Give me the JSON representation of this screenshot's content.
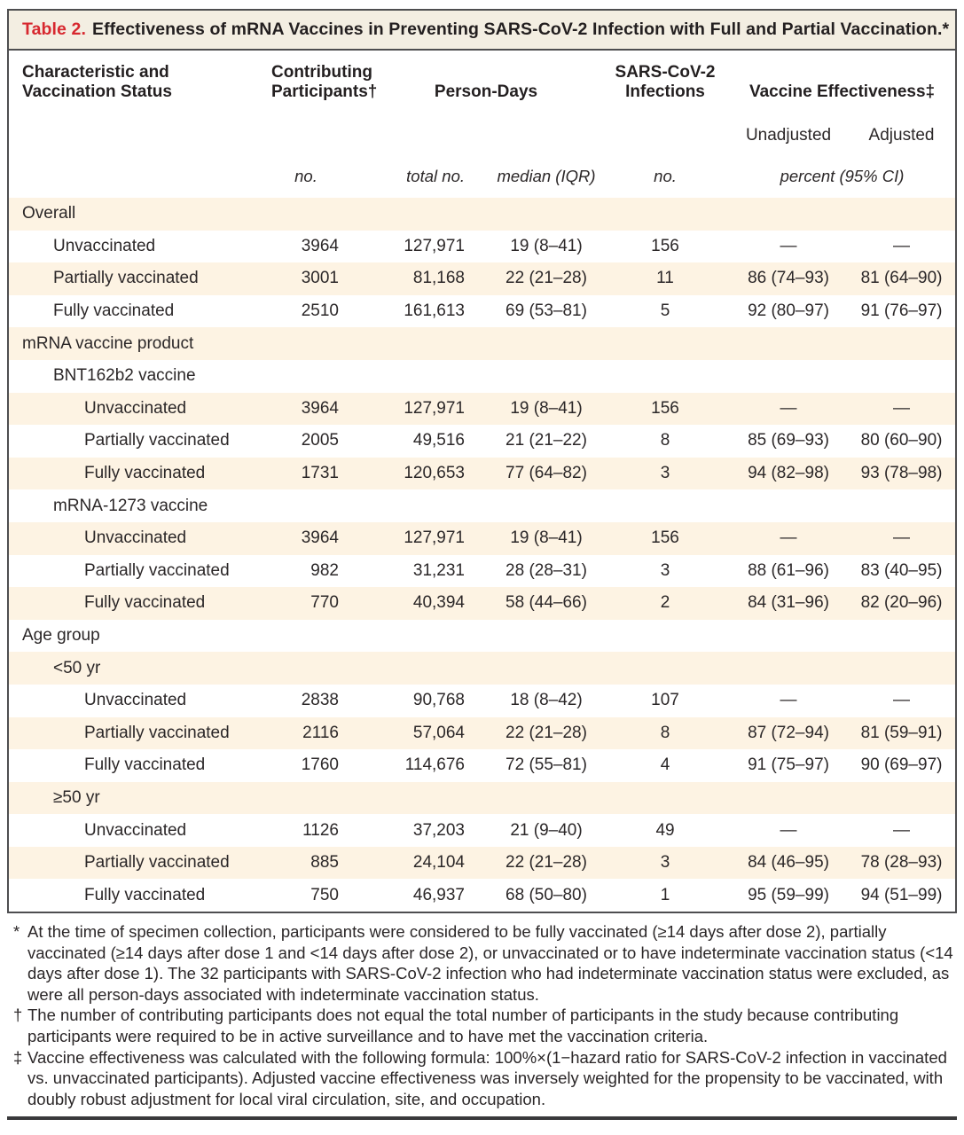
{
  "colors": {
    "title_accent": "#d7282f",
    "titlebar_bg": "#f3eee2",
    "row_stripe": "#fdf3e3",
    "border": "#4e4e50"
  },
  "table": {
    "label": "Table 2.",
    "title": "Effectiveness of mRNA Vaccines in Preventing SARS-CoV-2 Infection with Full and Partial Vaccination.*",
    "header": {
      "characteristic_line1": "Characteristic and",
      "characteristic_line2": "Vaccination Status",
      "contributing_line1": "Contributing",
      "contributing_line2": "Participants†",
      "person_days": "Person-Days",
      "infections_line1": "SARS-CoV-2",
      "infections_line2": "Infections",
      "vaccine_effectiveness": "Vaccine Effectiveness‡",
      "unadjusted": "Unadjusted",
      "adjusted": "Adjusted",
      "units": {
        "participants": "no.",
        "person_days_total": "total no.",
        "person_days_median": "median (IQR)",
        "infections": "no.",
        "effectiveness": "percent (95% CI)"
      }
    },
    "rows": [
      {
        "label": "Overall",
        "indent": 0,
        "values": [
          "",
          "",
          "",
          "",
          "",
          ""
        ]
      },
      {
        "label": "Unvaccinated",
        "indent": 1,
        "values": [
          "3964",
          "127,971",
          "19 (8–41)",
          "156",
          "—",
          "—"
        ]
      },
      {
        "label": "Partially vaccinated",
        "indent": 1,
        "values": [
          "3001",
          "81,168",
          "22 (21–28)",
          "11",
          "86 (74–93)",
          "81 (64–90)"
        ]
      },
      {
        "label": "Fully vaccinated",
        "indent": 1,
        "values": [
          "2510",
          "161,613",
          "69 (53–81)",
          "5",
          "92 (80–97)",
          "91 (76–97)"
        ]
      },
      {
        "label": "mRNA vaccine product",
        "indent": 0,
        "values": [
          "",
          "",
          "",
          "",
          "",
          ""
        ]
      },
      {
        "label": "BNT162b2 vaccine",
        "indent": 1,
        "values": [
          "",
          "",
          "",
          "",
          "",
          ""
        ]
      },
      {
        "label": "Unvaccinated",
        "indent": 2,
        "values": [
          "3964",
          "127,971",
          "19 (8–41)",
          "156",
          "—",
          "—"
        ]
      },
      {
        "label": "Partially vaccinated",
        "indent": 2,
        "values": [
          "2005",
          "49,516",
          "21 (21–22)",
          "8",
          "85 (69–93)",
          "80 (60–90)"
        ]
      },
      {
        "label": "Fully vaccinated",
        "indent": 2,
        "values": [
          "1731",
          "120,653",
          "77 (64–82)",
          "3",
          "94 (82–98)",
          "93 (78–98)"
        ]
      },
      {
        "label": "mRNA-1273 vaccine",
        "indent": 1,
        "values": [
          "",
          "",
          "",
          "",
          "",
          ""
        ]
      },
      {
        "label": "Unvaccinated",
        "indent": 2,
        "values": [
          "3964",
          "127,971",
          "19 (8–41)",
          "156",
          "—",
          "—"
        ]
      },
      {
        "label": "Partially vaccinated",
        "indent": 2,
        "values": [
          "982",
          "31,231",
          "28 (28–31)",
          "3",
          "88 (61–96)",
          "83 (40–95)"
        ]
      },
      {
        "label": "Fully vaccinated",
        "indent": 2,
        "values": [
          "770",
          "40,394",
          "58 (44–66)",
          "2",
          "84 (31–96)",
          "82 (20–96)"
        ]
      },
      {
        "label": "Age group",
        "indent": 0,
        "values": [
          "",
          "",
          "",
          "",
          "",
          ""
        ]
      },
      {
        "label": "<50 yr",
        "indent": 1,
        "values": [
          "",
          "",
          "",
          "",
          "",
          ""
        ]
      },
      {
        "label": "Unvaccinated",
        "indent": 2,
        "values": [
          "2838",
          "90,768",
          "18 (8–42)",
          "107",
          "—",
          "—"
        ]
      },
      {
        "label": "Partially vaccinated",
        "indent": 2,
        "values": [
          "2116",
          "57,064",
          "22 (21–28)",
          "8",
          "87 (72–94)",
          "81 (59–91)"
        ]
      },
      {
        "label": "Fully vaccinated",
        "indent": 2,
        "values": [
          "1760",
          "114,676",
          "72 (55–81)",
          "4",
          "91 (75–97)",
          "90 (69–97)"
        ]
      },
      {
        "label": "≥50 yr",
        "indent": 1,
        "values": [
          "",
          "",
          "",
          "",
          "",
          ""
        ]
      },
      {
        "label": "Unvaccinated",
        "indent": 2,
        "values": [
          "1126",
          "37,203",
          "21 (9–40)",
          "49",
          "—",
          "—"
        ]
      },
      {
        "label": "Partially vaccinated",
        "indent": 2,
        "values": [
          "885",
          "24,104",
          "22 (21–28)",
          "3",
          "84 (46–95)",
          "78 (28–93)"
        ]
      },
      {
        "label": "Fully vaccinated",
        "indent": 2,
        "values": [
          "750",
          "46,937",
          "68 (50–80)",
          "1",
          "95 (59–99)",
          "94 (51–99)"
        ]
      }
    ],
    "footnotes": [
      {
        "marker": "*",
        "text": "At the time of specimen collection, participants were considered to be fully vaccinated (≥14 days after dose 2), partially vaccinated (≥14 days after dose 1 and <14 days after dose 2), or unvaccinated or to have indeterminate vaccination status (<14 days after dose 1). The 32 participants with SARS-CoV-2 infection who had indeterminate vaccination status were excluded, as were all person-days associated with indeterminate vaccination status."
      },
      {
        "marker": "†",
        "text": "The number of contributing participants does not equal the total number of participants in the study because contributing participants were required to be in active surveillance and to have met the vaccination criteria."
      },
      {
        "marker": "‡",
        "text": "Vaccine effectiveness was calculated with the following formula: 100%×(1−hazard ratio for SARS-CoV-2 infection in vaccinated vs. unvaccinated participants). Adjusted vaccine effectiveness was inversely weighted for the propensity to be vaccinated, with doubly robust adjustment for local viral circulation, site, and occupation."
      }
    ]
  }
}
